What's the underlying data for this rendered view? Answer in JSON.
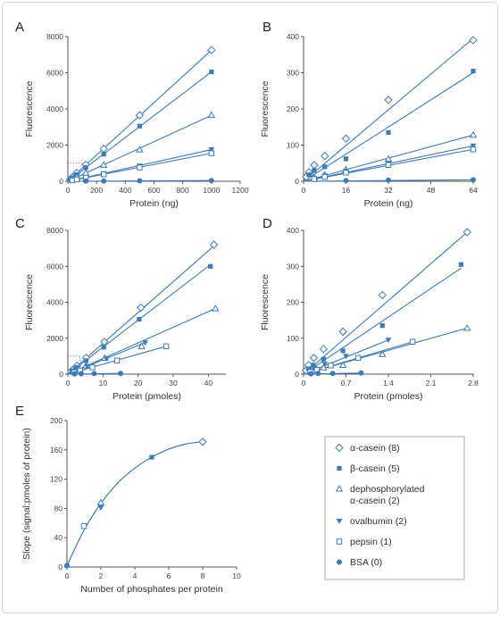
{
  "colors": {
    "series": "#3d7ab8",
    "axis": "#555555",
    "dotted": "#4a7fc0",
    "legend_border": "#aaaaaa"
  },
  "legend": {
    "items": [
      {
        "marker": "diamond-open",
        "label": "α-casein (8)"
      },
      {
        "marker": "square-filled",
        "label": "β-casein (5)"
      },
      {
        "marker": "triangle-open",
        "label": "dephosphorylated α-casein (2)",
        "lines": [
          "dephosphorylated",
          "α-casein (2)"
        ]
      },
      {
        "marker": "triangle-down-filled",
        "label": "ovalbumin (2)"
      },
      {
        "marker": "square-open",
        "label": "pepsin (1)"
      },
      {
        "marker": "circle-filled",
        "label": "BSA (0)"
      }
    ]
  },
  "chart_data": [
    {
      "panel": "A",
      "type": "scatter",
      "xlabel": "Protein (ng)",
      "ylabel": "Fluorescence",
      "xlim": [
        0,
        1200
      ],
      "ylim": [
        0,
        8000
      ],
      "xticks": [
        0,
        200,
        400,
        600,
        800,
        1000,
        1200
      ],
      "yticks": [
        0,
        2000,
        4000,
        6000,
        8000
      ],
      "series": [
        {
          "name": "α-casein (8)",
          "marker": "diamond-open",
          "fit": [
            0,
            7250,
            1000
          ],
          "x": [
            15,
            31,
            62,
            125,
            250,
            500,
            1000
          ],
          "y": [
            110,
            230,
            460,
            910,
            1800,
            3650,
            7250
          ]
        },
        {
          "name": "β-casein (5)",
          "marker": "square-filled",
          "fit": [
            0,
            6050,
            1000
          ],
          "x": [
            15,
            31,
            62,
            125,
            250,
            500,
            1000
          ],
          "y": [
            90,
            190,
            370,
            750,
            1500,
            3050,
            6050
          ]
        },
        {
          "name": "dephosphorylated α-casein (2)",
          "marker": "triangle-open",
          "fit": [
            0,
            3650,
            1000
          ],
          "x": [
            31,
            62,
            125,
            250,
            500,
            1000
          ],
          "y": [
            110,
            230,
            460,
            900,
            1750,
            3650
          ]
        },
        {
          "name": "ovalbumin (2)",
          "marker": "triangle-down-filled",
          "fit": [
            0,
            1750,
            1000
          ],
          "x": [
            31,
            62,
            125,
            250,
            500,
            1000
          ],
          "y": [
            55,
            110,
            220,
            430,
            850,
            1750
          ]
        },
        {
          "name": "pepsin (1)",
          "marker": "square-open",
          "fit": [
            0,
            1550,
            1000
          ],
          "x": [
            31,
            62,
            125,
            250,
            500,
            1000
          ],
          "y": [
            50,
            100,
            200,
            380,
            760,
            1550
          ]
        },
        {
          "name": "BSA (0)",
          "marker": "circle-filled",
          "fit": [
            0,
            40,
            1000
          ],
          "x": [
            125,
            250,
            500,
            1000
          ],
          "y": [
            10,
            15,
            25,
            40
          ]
        }
      ],
      "inset_box": [
        0,
        130,
        0,
        1000
      ]
    },
    {
      "panel": "B",
      "type": "scatter",
      "xlabel": "Protein (ng)",
      "ylabel": "Fluorescence",
      "xlim": [
        0,
        64
      ],
      "ylim": [
        0,
        400
      ],
      "xticks": [
        0,
        16,
        32,
        48,
        64
      ],
      "yticks": [
        0,
        100,
        200,
        300,
        400
      ],
      "series": [
        {
          "name": "α-casein (8)",
          "marker": "diamond-open",
          "fit": [
            0,
            395,
            64
          ],
          "x": [
            1,
            2,
            4,
            8,
            16,
            32,
            64
          ],
          "y": [
            12,
            25,
            45,
            70,
            118,
            225,
            390
          ]
        },
        {
          "name": "β-casein (5)",
          "marker": "square-filled",
          "fit": [
            0,
            300,
            64
          ],
          "x": [
            2,
            4,
            8,
            16,
            32,
            64
          ],
          "y": [
            18,
            30,
            40,
            62,
            135,
            305
          ]
        },
        {
          "name": "dephosphorylated α-casein (2)",
          "marker": "triangle-open",
          "fit": [
            0,
            128,
            64
          ],
          "x": [
            4,
            8,
            16,
            32,
            64
          ],
          "y": [
            10,
            18,
            32,
            62,
            128
          ]
        },
        {
          "name": "ovalbumin (2)",
          "marker": "triangle-down-filled",
          "fit": [
            0,
            98,
            64
          ],
          "x": [
            4,
            8,
            16,
            32,
            64
          ],
          "y": [
            8,
            15,
            28,
            50,
            98
          ]
        },
        {
          "name": "pepsin (1)",
          "marker": "square-open",
          "fit": [
            0,
            88,
            64
          ],
          "x": [
            4,
            8,
            16,
            32,
            64
          ],
          "y": [
            6,
            12,
            24,
            45,
            88
          ]
        },
        {
          "name": "BSA (0)",
          "marker": "circle-filled",
          "fit": [
            0,
            4,
            64
          ],
          "x": [
            16,
            32,
            64
          ],
          "y": [
            2,
            3,
            4
          ]
        }
      ]
    },
    {
      "panel": "C",
      "type": "scatter",
      "xlabel": "Protein (pmoles)",
      "ylabel": "Fluorescence",
      "xlim": [
        0,
        45
      ],
      "ylim": [
        0,
        8000
      ],
      "xticks": [
        0,
        10,
        20,
        30,
        40
      ],
      "yticks": [
        0,
        2000,
        4000,
        6000,
        8000
      ],
      "series": [
        {
          "name": "α-casein (8)",
          "marker": "diamond-open",
          "fit": [
            0,
            7200,
            42
          ],
          "x": [
            1.3,
            2.6,
            5.2,
            10.4,
            20.8,
            41.6
          ],
          "y": [
            230,
            460,
            910,
            1800,
            3700,
            7200
          ]
        },
        {
          "name": "β-casein (5)",
          "marker": "square-filled",
          "fit": [
            0,
            6000,
            40
          ],
          "x": [
            1.3,
            2.6,
            5.2,
            10.2,
            20.3,
            40.6
          ],
          "y": [
            190,
            370,
            750,
            1500,
            3050,
            6000
          ]
        },
        {
          "name": "dephosphorylated α-casein (2)",
          "marker": "triangle-open",
          "fit": [
            0,
            3650,
            42
          ],
          "x": [
            2.6,
            5.2,
            10.5,
            21,
            42
          ],
          "y": [
            230,
            460,
            900,
            1550,
            3650
          ]
        },
        {
          "name": "ovalbumin (2)",
          "marker": "triangle-down-filled",
          "fit": [
            0,
            1750,
            22
          ],
          "x": [
            1.4,
            2.8,
            5.5,
            11,
            22
          ],
          "y": [
            110,
            220,
            430,
            850,
            1750
          ]
        },
        {
          "name": "pepsin (1)",
          "marker": "square-open",
          "fit": [
            0,
            1550,
            28
          ],
          "x": [
            1.8,
            3.5,
            7,
            14,
            28
          ],
          "y": [
            100,
            200,
            380,
            760,
            1550
          ]
        },
        {
          "name": "BSA (0)",
          "marker": "circle-filled",
          "fit": [
            0,
            40,
            15
          ],
          "x": [
            1.9,
            3.8,
            7.5,
            15
          ],
          "y": [
            15,
            25,
            30,
            40
          ]
        }
      ],
      "inset_box": [
        0,
        3.5,
        0,
        1000
      ]
    },
    {
      "panel": "D",
      "type": "scatter",
      "xlabel": "Protein (pmoles)",
      "ylabel": "Fluorescence",
      "xlim": [
        0,
        2.8
      ],
      "ylim": [
        0,
        400
      ],
      "xticks": [
        0,
        0.7,
        1.4,
        2.1,
        2.8
      ],
      "yticks": [
        0,
        100,
        200,
        300,
        400
      ],
      "series": [
        {
          "name": "α-casein (8)",
          "marker": "diamond-open",
          "fit": [
            0,
            395,
            2.7
          ],
          "x": [
            0.04,
            0.08,
            0.17,
            0.33,
            0.65,
            1.3,
            2.7
          ],
          "y": [
            10,
            25,
            45,
            70,
            118,
            220,
            395
          ]
        },
        {
          "name": "β-casein (5)",
          "marker": "square-filled",
          "fit": [
            0,
            295,
            2.6
          ],
          "x": [
            0.08,
            0.16,
            0.33,
            0.65,
            1.3,
            2.6
          ],
          "y": [
            15,
            25,
            42,
            65,
            135,
            305
          ]
        },
        {
          "name": "dephosphorylated α-casein (2)",
          "marker": "triangle-open",
          "fit": [
            0,
            128,
            2.7
          ],
          "x": [
            0.17,
            0.33,
            0.65,
            1.3,
            2.7
          ],
          "y": [
            10,
            18,
            25,
            55,
            128
          ]
        },
        {
          "name": "ovalbumin (2)",
          "marker": "triangle-down-filled",
          "fit": [
            0,
            95,
            1.4
          ],
          "x": [
            0.09,
            0.18,
            0.35,
            0.7,
            1.4
          ],
          "y": [
            8,
            15,
            28,
            50,
            95
          ]
        },
        {
          "name": "pepsin (1)",
          "marker": "square-open",
          "fit": [
            0,
            90,
            1.8
          ],
          "x": [
            0.11,
            0.22,
            0.45,
            0.9,
            1.8
          ],
          "y": [
            6,
            12,
            24,
            45,
            90
          ]
        },
        {
          "name": "BSA (0)",
          "marker": "circle-filled",
          "fit": [
            0,
            3,
            0.95
          ],
          "x": [
            0.12,
            0.24,
            0.48,
            0.95
          ],
          "y": [
            1,
            2,
            2,
            3
          ]
        }
      ]
    },
    {
      "panel": "E",
      "type": "scatter",
      "xlabel": "Number of phosphates per protein",
      "ylabel": "Slope (signal:pmoles of protein)",
      "xlim": [
        0,
        10
      ],
      "ylim": [
        0,
        200
      ],
      "xticks": [
        0,
        2,
        4,
        6,
        8,
        10
      ],
      "yticks": [
        0,
        40,
        80,
        120,
        160,
        200
      ],
      "curve": {
        "x": [
          0,
          1,
          2,
          3,
          4,
          5,
          6,
          7,
          8
        ],
        "y": [
          2,
          50,
          87,
          115,
          135,
          150,
          161,
          168,
          171
        ]
      },
      "series": [
        {
          "name": "α-casein (8)",
          "marker": "diamond-open",
          "x": [
            8
          ],
          "y": [
            171
          ]
        },
        {
          "name": "β-casein (5)",
          "marker": "square-filled",
          "x": [
            5
          ],
          "y": [
            150
          ]
        },
        {
          "name": "dephosphorylated α-casein (2)",
          "marker": "triangle-open",
          "x": [
            2
          ],
          "y": [
            88
          ]
        },
        {
          "name": "ovalbumin (2)",
          "marker": "triangle-down-filled",
          "x": [
            2
          ],
          "y": [
            81
          ]
        },
        {
          "name": "pepsin (1)",
          "marker": "square-open",
          "x": [
            1
          ],
          "y": [
            56
          ]
        },
        {
          "name": "BSA (0)",
          "marker": "circle-filled",
          "x": [
            0
          ],
          "y": [
            2
          ]
        }
      ]
    }
  ]
}
